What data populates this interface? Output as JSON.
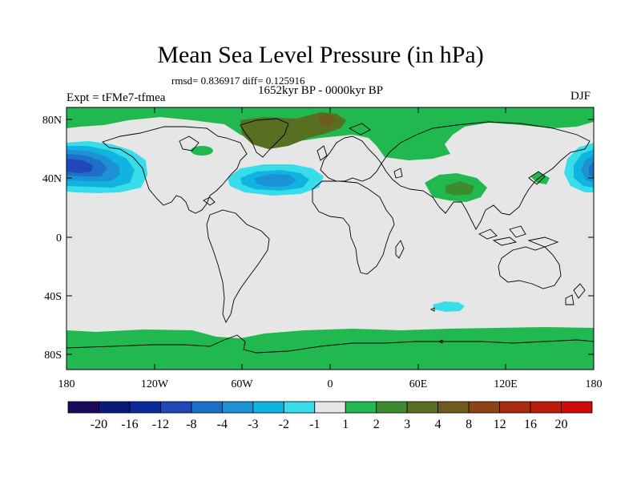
{
  "title": "Mean Sea Level Pressure (in hPa)",
  "stats": "rmsd= 0.836917 diff= 0.125916",
  "period": "1652kyr BP - 0000kyr BP",
  "experiment": "Expt = tFMe7-tfmea",
  "season": "DJF",
  "colors": {
    "background_land": "#e6e6e6",
    "coastline": "#000000",
    "neg_fills": [
      "#0a1a7a",
      "#0b2a9a",
      "#1f48b8",
      "#1c70c8",
      "#1c92d5",
      "#10b4e0",
      "#38ddea"
    ],
    "pos_fills": [
      "#22b850",
      "#3e8a2e",
      "#586f22",
      "#6e5a1c",
      "#8c4416",
      "#aa2c10",
      "#c01a0c"
    ]
  },
  "axes": {
    "lat_ticks": [
      "80N",
      "40N",
      "0",
      "40S",
      "80S"
    ],
    "lon_ticks": [
      "180",
      "120W",
      "60W",
      "0",
      "60E",
      "120E",
      "180"
    ]
  },
  "colorbar": {
    "colors": [
      "#1a0a5a",
      "#0a1a7a",
      "#0b2a9a",
      "#1f48b8",
      "#1c70c8",
      "#1c92d5",
      "#10b4e0",
      "#38ddea",
      "#e6e6e6",
      "#22b850",
      "#3e8a2e",
      "#586f22",
      "#6e5a1c",
      "#8c4416",
      "#aa2c10",
      "#c01a0c",
      "#d00a0a"
    ],
    "labels": [
      "-20",
      "-16",
      "-12",
      "-8",
      "-4",
      "-3",
      "-2",
      "-1",
      "1",
      "2",
      "3",
      "4",
      "8",
      "12",
      "16",
      "20"
    ]
  }
}
